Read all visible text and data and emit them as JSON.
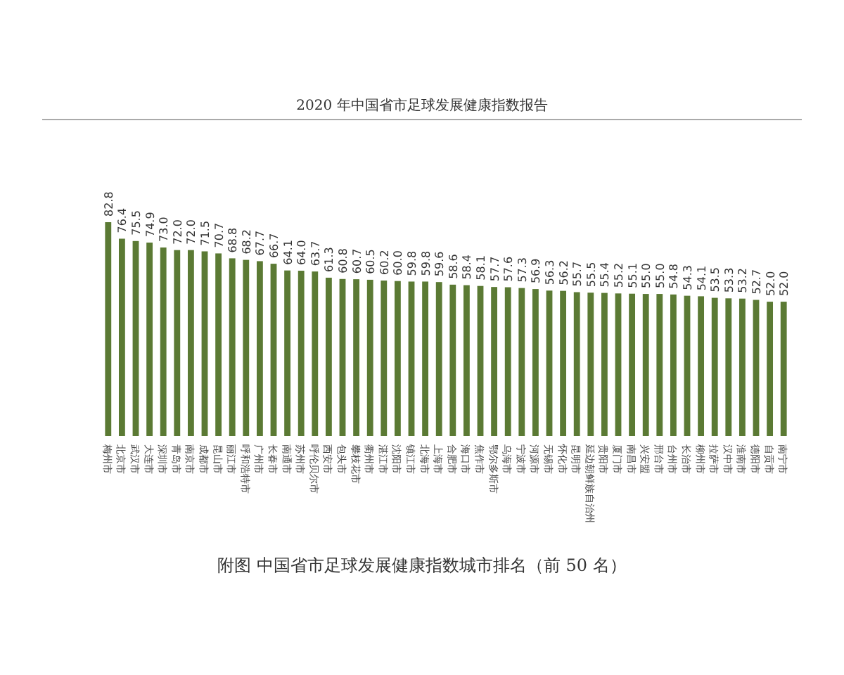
{
  "chart_data": {
    "type": "bar",
    "title": "2020 年中国省市足球发展健康指数报告",
    "annotations": [
      "附图  中国省市足球发展健康指数城市排名（前 50 名）"
    ],
    "categories": [
      "梅州市",
      "北京市",
      "武汉市",
      "大连市",
      "深圳市",
      "青岛市",
      "南京市",
      "成都市",
      "昆山市",
      "丽江市",
      "呼和浩特市",
      "广州市",
      "长春市",
      "南通市",
      "苏州市",
      "呼伦贝尔市",
      "西安市",
      "包头市",
      "攀枝花市",
      "衢州市",
      "湛江市",
      "沈阳市",
      "镇江市",
      "北海市",
      "上海市",
      "合肥市",
      "海口市",
      "焦作市",
      "鄂尔多斯市",
      "乌海市",
      "宁波市",
      "河源市",
      "无锡市",
      "怀化市",
      "昆明市",
      "延边朝鲜族自治州",
      "贵阳市",
      "厦门市",
      "南昌市",
      "兴安盟",
      "邢台市",
      "台州市",
      "长治市",
      "柳州市",
      "拉萨市",
      "汉中市",
      "淮南市",
      "德阳市",
      "自贡市",
      "南宁市"
    ],
    "values": [
      82.8,
      76.4,
      75.5,
      74.9,
      73.0,
      72.0,
      72.0,
      71.5,
      70.7,
      68.8,
      68.2,
      67.7,
      66.7,
      64.1,
      64.0,
      63.7,
      61.3,
      60.8,
      60.7,
      60.5,
      60.2,
      60.0,
      59.8,
      59.8,
      59.6,
      58.6,
      58.4,
      58.1,
      57.7,
      57.6,
      57.3,
      56.9,
      56.3,
      56.2,
      55.7,
      55.5,
      55.4,
      55.2,
      55.1,
      55.0,
      55.0,
      54.8,
      54.3,
      54.1,
      53.5,
      53.3,
      53.2,
      52.7,
      52.0,
      52.0
    ],
    "value_labels": [
      "82.8",
      "76.4",
      "75.5",
      "74.9",
      "73.0",
      "72.0",
      "72.0",
      "71.5",
      "70.7",
      "68.8",
      "68.2",
      "67.7",
      "66.7",
      "64.1",
      "64.0",
      "63.7",
      "61.3",
      "60.8",
      "60.7",
      "60.5",
      "60.2",
      "60.0",
      "59.8",
      "59.8",
      "59.6",
      "58.6",
      "58.4",
      "58.1",
      "57.7",
      "57.6",
      "57.3",
      "56.9",
      "56.3",
      "56.2",
      "55.7",
      "55.5",
      "55.4",
      "55.2",
      "55.1",
      "55.0",
      "55.0",
      "54.8",
      "54.3",
      "54.1",
      "53.5",
      "53.3",
      "53.2",
      "52.7",
      "52.0",
      "52.0"
    ],
    "color": "#5b7a34"
  }
}
